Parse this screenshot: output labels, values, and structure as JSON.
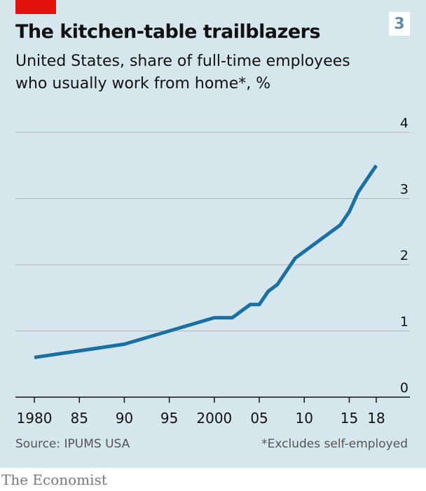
{
  "badge": "3",
  "colors": {
    "background": "#d6e6ed",
    "line": "#1a6fa3",
    "accent": "#e3120b",
    "grid": "#b3b3b3"
  },
  "footer": {
    "source": "Source: IPUMS USA",
    "footnote": "*Excludes self-employed",
    "brand": "The Economist"
  },
  "chart_data": {
    "type": "line",
    "title": "The kitchen-table trailblazers",
    "subtitle_lines": [
      "United States, share of full-time employees",
      "who usually work from home*, %"
    ],
    "x": [
      1980,
      1990,
      2000,
      2002,
      2004,
      2005,
      2006,
      2007,
      2009,
      2014,
      2015,
      2016,
      2018
    ],
    "y": [
      0.6,
      0.8,
      1.2,
      1.2,
      1.4,
      1.4,
      1.6,
      1.7,
      2.1,
      2.6,
      2.8,
      3.1,
      3.5
    ],
    "xlim": [
      1980,
      2018
    ],
    "ylim": [
      0,
      4
    ],
    "x_ticks": [
      1980,
      1985,
      1990,
      1995,
      2000,
      2005,
      2010,
      2015,
      2018
    ],
    "x_tick_labels": [
      "1980",
      "85",
      "90",
      "95",
      "2000",
      "05",
      "10",
      "15",
      "18"
    ],
    "y_ticks": [
      0,
      1,
      2,
      3,
      4
    ],
    "y_tick_labels": [
      "0",
      "1",
      "2",
      "3",
      "4"
    ],
    "y_axis_side": "right",
    "grid": true
  }
}
